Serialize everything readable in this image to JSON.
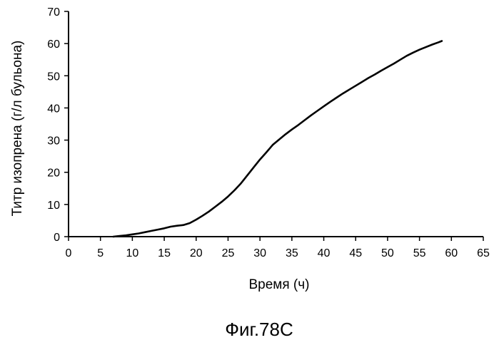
{
  "chart_data": {
    "type": "line",
    "title": "",
    "xlabel": "Время (ч)",
    "ylabel": "Титр изопрена (г/л бульона)",
    "xlim": [
      0,
      65
    ],
    "ylim": [
      0,
      70
    ],
    "xticks": [
      0,
      5,
      10,
      15,
      20,
      25,
      30,
      35,
      40,
      45,
      50,
      55,
      60,
      65
    ],
    "yticks": [
      0,
      10,
      20,
      30,
      40,
      50,
      60,
      70
    ],
    "grid": false,
    "legend": "none",
    "series": [
      {
        "x": [
          7,
          8,
          9,
          10,
          11,
          12,
          13,
          14,
          15,
          16,
          17,
          18,
          19,
          20,
          21,
          22,
          23,
          24,
          25,
          26,
          27,
          28,
          29,
          30,
          31,
          32,
          33,
          34,
          35,
          36,
          37,
          38,
          39,
          40,
          41,
          42,
          43,
          44,
          45,
          46,
          47,
          48,
          49,
          50,
          51,
          52,
          53,
          54,
          55,
          56,
          57,
          58,
          58.5
        ],
        "y": [
          0,
          0.2,
          0.4,
          0.7,
          1.0,
          1.4,
          1.8,
          2.2,
          2.6,
          3.1,
          3.4,
          3.6,
          4.2,
          5.3,
          6.5,
          7.8,
          9.3,
          10.8,
          12.5,
          14.4,
          16.5,
          19.0,
          21.5,
          24.0,
          26.2,
          28.5,
          30.2,
          31.8,
          33.3,
          34.7,
          36.2,
          37.7,
          39.1,
          40.5,
          41.9,
          43.2,
          44.5,
          45.7,
          46.9,
          48.1,
          49.3,
          50.4,
          51.6,
          52.7,
          53.8,
          55.0,
          56.2,
          57.2,
          58.1,
          58.9,
          59.7,
          60.4,
          60.8
        ]
      }
    ],
    "caption": "Фиг.78C",
    "line_color": "#000000"
  }
}
